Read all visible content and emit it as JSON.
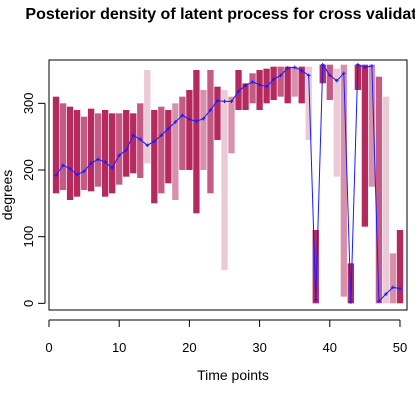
{
  "chart_data": {
    "type": "line",
    "title": "Posterior density of latent process for cross validation",
    "xlabel": "Time points",
    "ylabel": "degrees",
    "xlim": [
      0,
      51
    ],
    "ylim": [
      -10,
      365
    ],
    "xticks": [
      0,
      10,
      20,
      30,
      40,
      50
    ],
    "yticks": [
      0,
      100,
      200,
      300
    ],
    "grid": false,
    "colors": {
      "line": "#1a1aff",
      "band_dark": "#b5295f",
      "band_mid": "#c45b85",
      "band_light": "#d891ad",
      "band_pale": "#ecc9d6"
    },
    "series": [
      {
        "x": [
          1,
          2,
          3,
          4,
          5,
          6,
          7,
          8,
          9,
          10,
          11,
          12,
          13,
          14,
          15,
          16,
          17,
          18,
          19,
          20,
          21,
          22,
          23,
          24,
          25,
          26,
          27,
          28,
          29,
          30,
          31,
          32,
          33,
          34,
          35,
          36,
          37,
          38,
          39,
          40,
          41,
          42,
          43,
          44,
          45,
          46,
          47,
          48,
          49,
          50
        ],
        "values": [
          192,
          207,
          202,
          193,
          198,
          210,
          216,
          212,
          203,
          222,
          230,
          252,
          246,
          237,
          243,
          252,
          262,
          272,
          282,
          276,
          273,
          277,
          290,
          304,
          303,
          303,
          318,
          327,
          332,
          328,
          325,
          336,
          342,
          353,
          354,
          349,
          342,
          5,
          358,
          342,
          334,
          345,
          2,
          358,
          354,
          356,
          3,
          14,
          24,
          22
        ]
      }
    ],
    "bands": [
      {
        "x": 1,
        "low": 165,
        "high": 310,
        "shade": "dark"
      },
      {
        "x": 2,
        "low": 170,
        "high": 300,
        "shade": "mid"
      },
      {
        "x": 3,
        "low": 155,
        "high": 295,
        "shade": "dark"
      },
      {
        "x": 4,
        "low": 160,
        "high": 290,
        "shade": "dark"
      },
      {
        "x": 5,
        "low": 170,
        "high": 280,
        "shade": "mid"
      },
      {
        "x": 6,
        "low": 168,
        "high": 292,
        "shade": "dark"
      },
      {
        "x": 7,
        "low": 175,
        "high": 285,
        "shade": "mid"
      },
      {
        "x": 8,
        "low": 160,
        "high": 290,
        "shade": "dark"
      },
      {
        "x": 9,
        "low": 165,
        "high": 285,
        "shade": "dark"
      },
      {
        "x": 10,
        "low": 178,
        "high": 285,
        "shade": "mid"
      },
      {
        "x": 11,
        "low": 190,
        "high": 290,
        "shade": "dark"
      },
      {
        "x": 12,
        "low": 195,
        "high": 285,
        "shade": "dark"
      },
      {
        "x": 13,
        "low": 188,
        "high": 300,
        "shade": "mid"
      },
      {
        "x": 14,
        "low": 210,
        "high": 350,
        "shade": "pale"
      },
      {
        "x": 15,
        "low": 150,
        "high": 290,
        "shade": "dark"
      },
      {
        "x": 16,
        "low": 165,
        "high": 295,
        "shade": "mid"
      },
      {
        "x": 17,
        "low": 180,
        "high": 290,
        "shade": "dark"
      },
      {
        "x": 18,
        "low": 155,
        "high": 300,
        "shade": "light"
      },
      {
        "x": 19,
        "low": 200,
        "high": 310,
        "shade": "mid"
      },
      {
        "x": 20,
        "low": 200,
        "high": 320,
        "shade": "dark"
      },
      {
        "x": 21,
        "low": 135,
        "high": 350,
        "shade": "dark"
      },
      {
        "x": 22,
        "low": 200,
        "high": 320,
        "shade": "light"
      },
      {
        "x": 23,
        "low": 165,
        "high": 350,
        "shade": "mid"
      },
      {
        "x": 24,
        "low": 245,
        "high": 325,
        "shade": "dark"
      },
      {
        "x": 25,
        "low": 50,
        "high": 320,
        "shade": "pale"
      },
      {
        "x": 26,
        "low": 225,
        "high": 310,
        "shade": "light"
      },
      {
        "x": 27,
        "low": 290,
        "high": 350,
        "shade": "dark"
      },
      {
        "x": 28,
        "low": 290,
        "high": 330,
        "shade": "dark"
      },
      {
        "x": 29,
        "low": 300,
        "high": 345,
        "shade": "mid"
      },
      {
        "x": 30,
        "low": 290,
        "high": 350,
        "shade": "dark"
      },
      {
        "x": 31,
        "low": 300,
        "high": 352,
        "shade": "dark"
      },
      {
        "x": 32,
        "low": 305,
        "high": 355,
        "shade": "dark"
      },
      {
        "x": 33,
        "low": 310,
        "high": 355,
        "shade": "mid"
      },
      {
        "x": 34,
        "low": 300,
        "high": 355,
        "shade": "dark"
      },
      {
        "x": 35,
        "low": 310,
        "high": 355,
        "shade": "light"
      },
      {
        "x": 36,
        "low": 300,
        "high": 355,
        "shade": "dark"
      },
      {
        "x": 37,
        "low": 245,
        "high": 355,
        "shade": "pale"
      },
      {
        "x": 38,
        "low": 0,
        "high": 110,
        "shade": "dark"
      },
      {
        "x": 39,
        "low": 330,
        "high": 358,
        "shade": "dark"
      },
      {
        "x": 40,
        "low": 305,
        "high": 358,
        "shade": "mid"
      },
      {
        "x": 41,
        "low": 190,
        "high": 352,
        "shade": "pale"
      },
      {
        "x": 42,
        "low": 10,
        "high": 358,
        "shade": "light"
      },
      {
        "x": 43,
        "low": 0,
        "high": 60,
        "shade": "dark"
      },
      {
        "x": 44,
        "low": 320,
        "high": 358,
        "shade": "dark"
      },
      {
        "x": 45,
        "low": 115,
        "high": 358,
        "shade": "dark"
      },
      {
        "x": 46,
        "low": 175,
        "high": 358,
        "shade": "light"
      },
      {
        "x": 47,
        "low": 0,
        "high": 340,
        "shade": "mid"
      },
      {
        "x": 48,
        "low": 0,
        "high": 310,
        "shade": "pale"
      },
      {
        "x": 49,
        "low": 0,
        "high": 75,
        "shade": "light"
      },
      {
        "x": 50,
        "low": 0,
        "high": 110,
        "shade": "dark"
      }
    ]
  }
}
